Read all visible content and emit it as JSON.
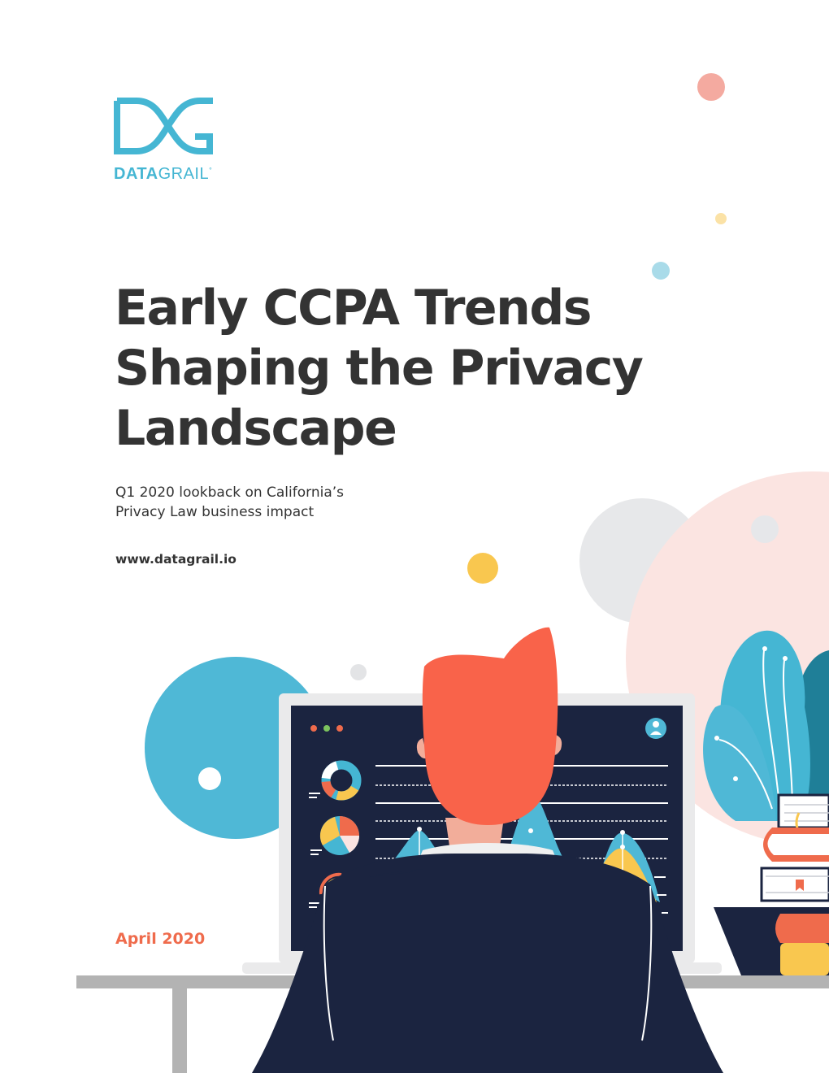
{
  "brand": {
    "name_bold": "DATA",
    "name_light": "GRAIL",
    "mark": "°",
    "logo_icon": "datagrail-dg-logo-icon",
    "color": "#45b6d3"
  },
  "title_lines": [
    "Early CCPA Trends",
    "Shaping the Privacy",
    "Landscape"
  ],
  "subtitle_lines": [
    "Q1 2020 lookback on California’s",
    "Privacy Law business impact"
  ],
  "website": "www.datagrail.io",
  "date": "April 2020",
  "colors": {
    "text": "#333333",
    "accent": "#ef6b4c",
    "teal": "#45b6d3",
    "navy": "#1b2440",
    "yellow": "#f9c74f",
    "blush": "#fbe4e1"
  }
}
